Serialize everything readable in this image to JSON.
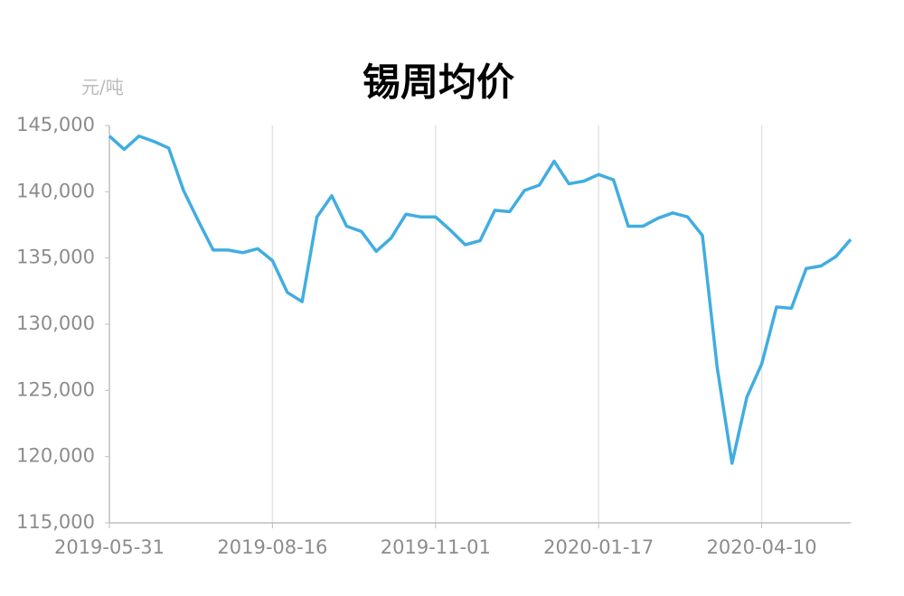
{
  "chart_data": {
    "type": "line",
    "title": "锡周均价",
    "y_unit": "元/吨",
    "categories": [
      "2019-05-31",
      null,
      null,
      null,
      null,
      null,
      null,
      null,
      null,
      null,
      null,
      "2019-08-16",
      null,
      null,
      null,
      null,
      null,
      null,
      null,
      null,
      null,
      null,
      "2019-11-01",
      null,
      null,
      null,
      null,
      null,
      null,
      null,
      null,
      null,
      null,
      "2020-01-17",
      null,
      null,
      null,
      null,
      null,
      null,
      null,
      null,
      null,
      null,
      "2020-04-10",
      null,
      null,
      null,
      null,
      null,
      null
    ],
    "series": [
      {
        "name": "锡周均价",
        "color": "#41ade0",
        "values": [
          144200,
          143200,
          144200,
          143800,
          143300,
          140100,
          137800,
          135600,
          135600,
          135400,
          135700,
          134800,
          132400,
          131700,
          138100,
          139700,
          137400,
          137000,
          135500,
          136500,
          138300,
          138100,
          138100,
          137100,
          136000,
          136300,
          138600,
          138500,
          140100,
          140500,
          142300,
          140600,
          140800,
          141300,
          140900,
          137400,
          137400,
          138000,
          138400,
          138100,
          136700,
          126700,
          119500,
          124500,
          127000,
          131300,
          131200,
          134200,
          134400,
          135100,
          136400
        ]
      }
    ],
    "ylim": [
      115000,
      145000
    ],
    "yticks": [
      {
        "value": 115000,
        "label": "115,000"
      },
      {
        "value": 120000,
        "label": "120,000"
      },
      {
        "value": 125000,
        "label": "125,000"
      },
      {
        "value": 130000,
        "label": "130,000"
      },
      {
        "value": 135000,
        "label": "135,000"
      },
      {
        "value": 140000,
        "label": "140,000"
      },
      {
        "value": 145000,
        "label": "145,000"
      }
    ],
    "x_grid": true
  }
}
